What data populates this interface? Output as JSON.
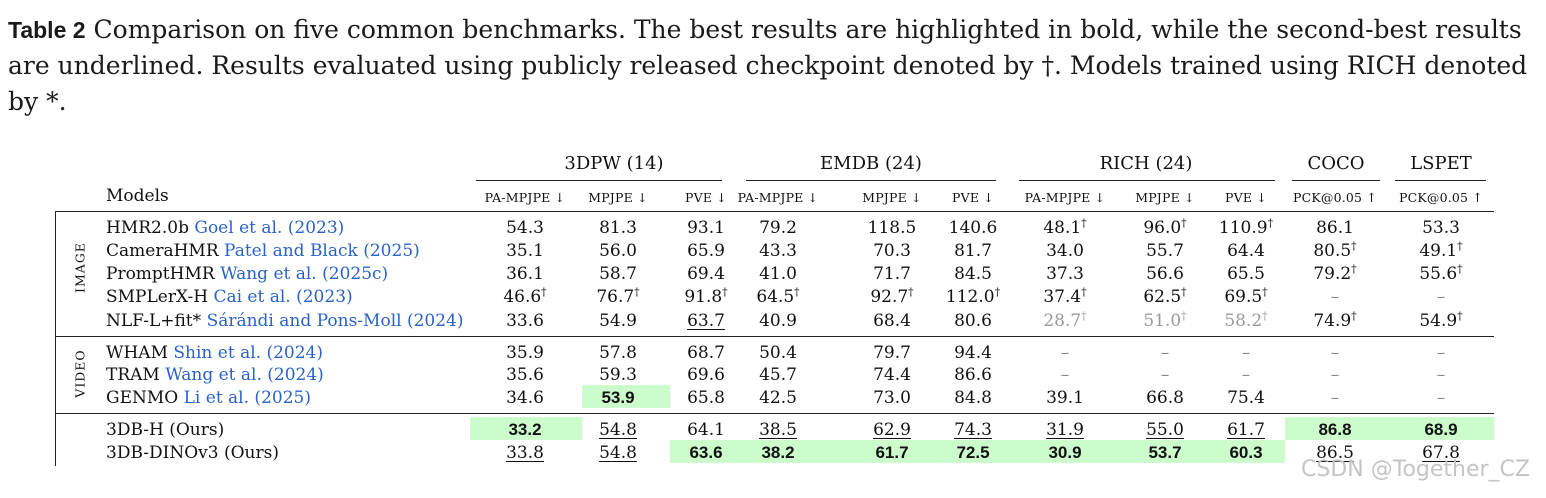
{
  "caption": {
    "label": "Table 2",
    "text": "Comparison on five common benchmarks. The best results are highlighted in bold, while the second-best results are underlined. Results evaluated using publicly released checkpoint denoted by †. Models trained using RICH denoted by *."
  },
  "table": {
    "models_header": "Models",
    "groups": [
      "3DPW (14)",
      "EMDB (24)",
      "RICH (24)",
      "COCO",
      "LSPET"
    ],
    "metrics": [
      "PA-MPJPE ↓",
      "MPJPE ↓",
      "PVE ↓",
      "PA-MPJPE ↓",
      "MPJPE ↓",
      "PVE ↓",
      "PA-MPJPE ↓",
      "MPJPE ↓",
      "PVE ↓",
      "PCK@0.05 ↑",
      "PCK@0.05 ↑"
    ],
    "section_labels": [
      "IMAGE",
      "VIDEO"
    ],
    "rows": [
      {
        "name": "HMR2.0b",
        "cite": "Goel et al. (2023)",
        "values": [
          "54.3",
          "81.3",
          "93.1",
          "79.2",
          "118.5",
          "140.6",
          "48.1†",
          "96.0†",
          "110.9†",
          "86.1",
          "53.3"
        ]
      },
      {
        "name": "CameraHMR",
        "cite": "Patel and Black (2025)",
        "values": [
          "35.1",
          "56.0",
          "65.9",
          "43.3",
          "70.3",
          "81.7",
          "34.0",
          "55.7",
          "64.4",
          "80.5†",
          "49.1†"
        ]
      },
      {
        "name": "PromptHMR",
        "cite": "Wang et al. (2025c)",
        "values": [
          "36.1",
          "58.7",
          "69.4",
          "41.0",
          "71.7",
          "84.5",
          "37.3",
          "56.6",
          "65.5",
          "79.2†",
          "55.6†"
        ]
      },
      {
        "name": "SMPLerX-H",
        "cite": "Cai et al. (2023)",
        "values": [
          "46.6†",
          "76.7†",
          "91.8†",
          "64.5†",
          "92.7†",
          "112.0†",
          "37.4†",
          "62.5†",
          "69.5†",
          "–",
          "–"
        ]
      },
      {
        "name": "NLF-L+fit*",
        "cite": "Sárándi and Pons-Moll (2024)",
        "values": [
          "33.6",
          "54.9",
          "63.7",
          "40.9",
          "68.4",
          "80.6",
          "28.7†",
          "51.0†",
          "58.2†",
          "74.9†",
          "54.9†"
        ]
      },
      {
        "name": "WHAM",
        "cite": "Shin et al. (2024)",
        "values": [
          "35.9",
          "57.8",
          "68.7",
          "50.4",
          "79.7",
          "94.4",
          "–",
          "–",
          "–",
          "–",
          "–"
        ]
      },
      {
        "name": "TRAM",
        "cite": "Wang et al. (2024)",
        "values": [
          "35.6",
          "59.3",
          "69.6",
          "45.7",
          "74.4",
          "86.6",
          "–",
          "–",
          "–",
          "–",
          "–"
        ]
      },
      {
        "name": "GENMO",
        "cite": "Li et al. (2025)",
        "values": [
          "34.6",
          "53.9",
          "65.8",
          "42.5",
          "73.0",
          "84.8",
          "39.1",
          "66.8",
          "75.4",
          "–",
          "–"
        ]
      },
      {
        "name": "3DB-H (Ours)",
        "cite": "",
        "values": [
          "33.2",
          "54.8",
          "64.1",
          "38.5",
          "62.9",
          "74.3",
          "31.9",
          "55.0",
          "61.7",
          "86.8",
          "68.9"
        ]
      },
      {
        "name": "3DB-DINOv3 (Ours)",
        "cite": "",
        "values": [
          "33.8",
          "54.8",
          "63.6",
          "38.2",
          "61.7",
          "72.5",
          "30.9",
          "53.7",
          "60.3",
          "86.5",
          "67.8"
        ]
      }
    ]
  },
  "styles": {
    "highlight_color": "#ccfccc",
    "cite_color": "#2a62c8",
    "bold": [
      [
        7,
        1
      ],
      [
        8,
        0
      ],
      [
        8,
        9
      ],
      [
        8,
        10
      ],
      [
        9,
        2
      ],
      [
        9,
        3
      ],
      [
        9,
        4
      ],
      [
        9,
        5
      ],
      [
        9,
        6
      ],
      [
        9,
        7
      ],
      [
        9,
        8
      ]
    ],
    "underline": [
      [
        4,
        2
      ],
      [
        8,
        1
      ],
      [
        8,
        3
      ],
      [
        8,
        4
      ],
      [
        8,
        5
      ],
      [
        8,
        6
      ],
      [
        8,
        7
      ],
      [
        8,
        8
      ],
      [
        9,
        0
      ],
      [
        9,
        1
      ],
      [
        9,
        9
      ],
      [
        9,
        10
      ]
    ],
    "gray": [
      [
        4,
        6
      ],
      [
        4,
        7
      ],
      [
        4,
        8
      ]
    ]
  },
  "watermark": "CSDN @Together_CZ"
}
